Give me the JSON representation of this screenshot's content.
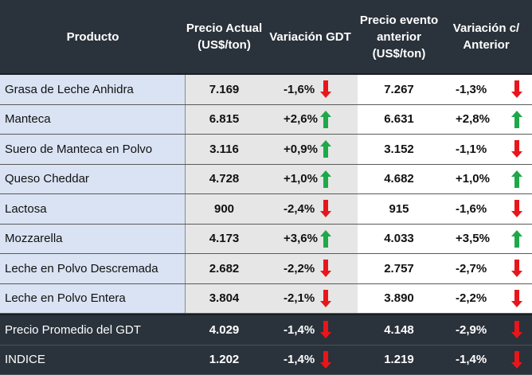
{
  "header": {
    "producto": "Producto",
    "precio_actual": "Precio Actual (US$/ton)",
    "variacion_gdt": "Variación GDT",
    "precio_anterior": "Precio evento anterior (US$/ton)",
    "variacion_anterior": "Variación c/ Anterior"
  },
  "colors": {
    "up": "#1ea84a",
    "down": "#e8161b",
    "header_bg": "#2a323b",
    "label_bg": "#dae3f3",
    "price_bg": "#e6e6e6"
  },
  "rows": [
    {
      "producto": "Grasa de Leche Anhidra",
      "precio": "7.169",
      "var_gdt": "-1,6%",
      "dir_gdt": "down",
      "anterior": "7.267",
      "var_ant": "-1,3%",
      "dir_ant": "down"
    },
    {
      "producto": "Manteca",
      "precio": "6.815",
      "var_gdt": "+2,6%",
      "dir_gdt": "up",
      "anterior": "6.631",
      "var_ant": "+2,8%",
      "dir_ant": "up"
    },
    {
      "producto": "Suero de Manteca en Polvo",
      "precio": "3.116",
      "var_gdt": "+0,9%",
      "dir_gdt": "up",
      "anterior": "3.152",
      "var_ant": "-1,1%",
      "dir_ant": "down"
    },
    {
      "producto": "Queso Cheddar",
      "precio": "4.728",
      "var_gdt": "+1,0%",
      "dir_gdt": "up",
      "anterior": "4.682",
      "var_ant": "+1,0%",
      "dir_ant": "up"
    },
    {
      "producto": "Lactosa",
      "precio": "900",
      "var_gdt": "-2,4%",
      "dir_gdt": "down",
      "anterior": "915",
      "var_ant": "-1,6%",
      "dir_ant": "down"
    },
    {
      "producto": "Mozzarella",
      "precio": "4.173",
      "var_gdt": "+3,6%",
      "dir_gdt": "up",
      "anterior": "4.033",
      "var_ant": "+3,5%",
      "dir_ant": "up"
    },
    {
      "producto": "Leche en Polvo Descremada",
      "precio": "2.682",
      "var_gdt": "-2,2%",
      "dir_gdt": "down",
      "anterior": "2.757",
      "var_ant": "-2,7%",
      "dir_ant": "down"
    },
    {
      "producto": "Leche en Polvo Entera",
      "precio": "3.804",
      "var_gdt": "-2,1%",
      "dir_gdt": "down",
      "anterior": "3.890",
      "var_ant": "-2,2%",
      "dir_ant": "down"
    }
  ],
  "summary": [
    {
      "producto": "Precio Promedio del GDT",
      "precio": "4.029",
      "var_gdt": "-1,4%",
      "dir_gdt": "down",
      "anterior": "4.148",
      "var_ant": "-2,9%",
      "dir_ant": "down"
    },
    {
      "producto": "INDICE",
      "precio": "1.202",
      "var_gdt": "-1,4%",
      "dir_gdt": "down",
      "anterior": "1.219",
      "var_ant": "-1,4%",
      "dir_ant": "down"
    }
  ]
}
